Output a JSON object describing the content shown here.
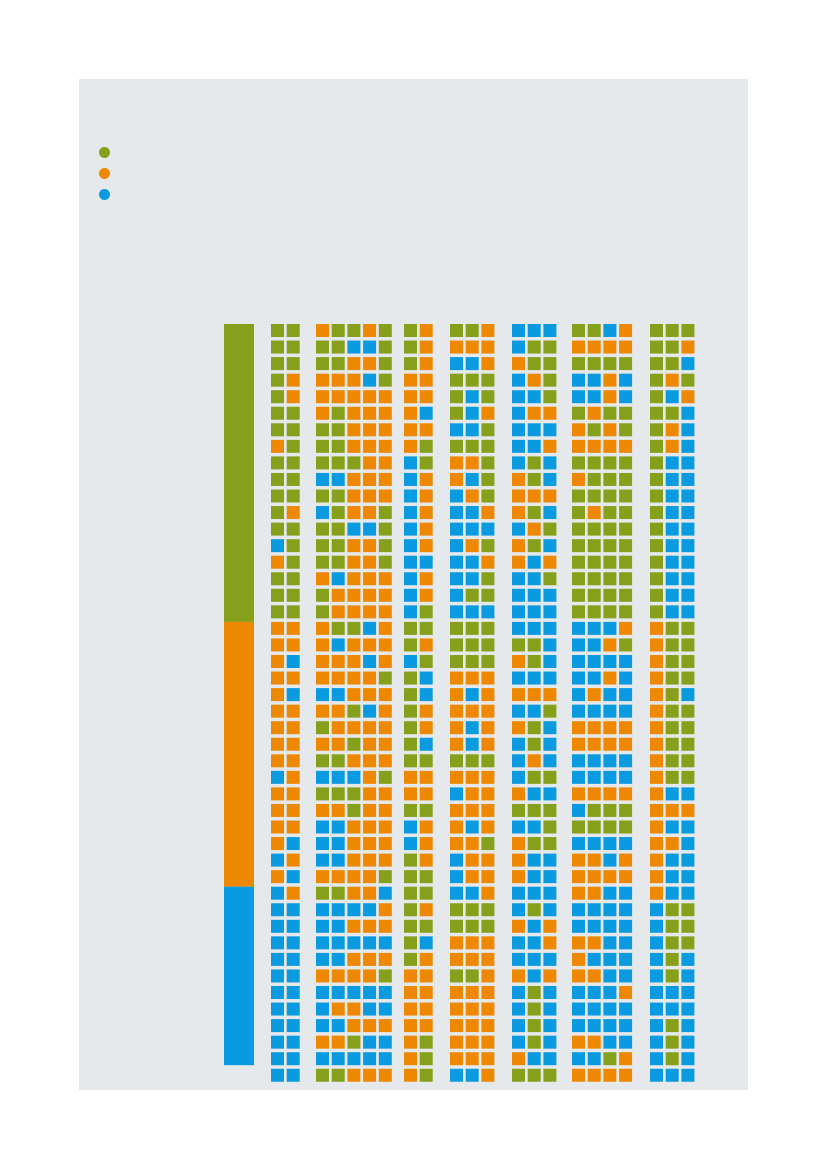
{
  "chart_data": {
    "type": "waffle",
    "title": "",
    "legend_position": "top-left",
    "categories": [
      {
        "key": "g",
        "name": "",
        "color": "#86a01b"
      },
      {
        "key": "o",
        "name": "",
        "color": "#ee8800"
      },
      {
        "key": "b",
        "name": "",
        "color": "#0a9ae0"
      }
    ],
    "reference_bar": {
      "segments": [
        {
          "key": "g",
          "rows": 18
        },
        {
          "key": "o",
          "rows": 16
        },
        {
          "key": "b",
          "rows": 11
        }
      ]
    },
    "columns": [
      {
        "cells": [
          "gg",
          "gg",
          "gg",
          "go",
          "go",
          "gg",
          "gg",
          "og",
          "gg",
          "gg",
          "gg",
          "go",
          "gg",
          "bg",
          "og",
          "gg",
          "gg",
          "gg",
          "oo",
          "oo",
          "ob",
          "oo",
          "ob",
          "oo",
          "oo",
          "oo",
          "oo",
          "bo",
          "oo",
          "oo",
          "oo",
          "ob",
          "bo",
          "ob",
          "bo",
          "bb",
          "bb",
          "bb",
          "bb",
          "bb",
          "bb",
          "bb",
          "bb",
          "bb",
          "bb",
          "bb"
        ]
      },
      {
        "cells": [
          "oggog",
          "ggbbg",
          "ggoog",
          "ooobg",
          "ooooo",
          "ogooo",
          "ggooo",
          "ggooo",
          "gggoo",
          "bbooo",
          "ggooo",
          "bgoog",
          "ggbbg",
          "ggoog",
          "ggoog",
          "obooo",
          "goooo",
          "goooo",
          "oggbo",
          "obooo",
          "ooobo",
          "oooog",
          "bbooo",
          "oogbo",
          "goooo",
          "oogoo",
          "ggooo",
          "bbbog",
          "gggoo",
          "oogoo",
          "bbooo",
          "bbooo",
          "bbooo",
          "oooog",
          "ggoob",
          "bbbbo",
          "bbooo",
          "bbbbb",
          "bbooo",
          "oooog",
          "bbbbb",
          "boobb",
          "bbooo",
          "oogbb",
          "bbbbb",
          "ggooo"
        ]
      },
      {
        "cells": [
          "go",
          "go",
          "go",
          "oo",
          "oo",
          "ob",
          "oo",
          "og",
          "bg",
          "bo",
          "bo",
          "bo",
          "bo",
          "bo",
          "bb",
          "bo",
          "bo",
          "bg",
          "gg",
          "go",
          "bg",
          "gb",
          "gb",
          "go",
          "go",
          "gb",
          "gg",
          "oo",
          "oo",
          "gg",
          "bo",
          "bo",
          "go",
          "gg",
          "gg",
          "go",
          "gg",
          "gb",
          "go",
          "oo",
          "oo",
          "oo",
          "oo",
          "og",
          "og",
          "og"
        ]
      },
      {
        "cells": [
          "ggo",
          "ooo",
          "bbo",
          "ggg",
          "gbg",
          "gbo",
          "bbg",
          "ggg",
          "oog",
          "obg",
          "bog",
          "bbo",
          "bbb",
          "bog",
          "bbo",
          "bbg",
          "bgg",
          "bbb",
          "ggg",
          "ggg",
          "ggg",
          "ooo",
          "obo",
          "ooo",
          "obo",
          "obo",
          "ggg",
          "ooo",
          "boo",
          "ooo",
          "obo",
          "oog",
          "boo",
          "boo",
          "bbo",
          "ggg",
          "ggg",
          "ooo",
          "ooo",
          "ggo",
          "ooo",
          "ooo",
          "ooo",
          "ooo",
          "ooo",
          "bbo"
        ]
      },
      {
        "cells": [
          "bbb",
          "bgg",
          "ogg",
          "bog",
          "bbg",
          "boo",
          "bbb",
          "bbo",
          "bgb",
          "ogb",
          "ooo",
          "ogb",
          "bog",
          "ogb",
          "obo",
          "bbg",
          "bbb",
          "bbb",
          "bbb",
          "ggb",
          "ogb",
          "bbb",
          "ooo",
          "bbg",
          "ogb",
          "bgb",
          "bob",
          "bgg",
          "obb",
          "ggg",
          "bbg",
          "ogg",
          "obb",
          "obb",
          "bbb",
          "bgb",
          "obo",
          "bbo",
          "bbb",
          "obo",
          "bgb",
          "bgb",
          "bgb",
          "bgb",
          "obb",
          "ggg"
        ]
      },
      {
        "cells": [
          "ggbo",
          "oooo",
          "gggg",
          "bbob",
          "bbob",
          "gogg",
          "ogog",
          "oooo",
          "gggg",
          "oggg",
          "gggg",
          "gogg",
          "gggg",
          "gggg",
          "gggg",
          "gggg",
          "gggg",
          "gggg",
          "bbbo",
          "bbog",
          "bbbb",
          "bbob",
          "bobb",
          "bbbb",
          "oooo",
          "oooo",
          "bbbb",
          "bbbb",
          "oooo",
          "bggg",
          "gggg",
          "bbbb",
          "oobo",
          "oooo",
          "oobb",
          "bbbb",
          "bbbb",
          "oobb",
          "obbb",
          "oobb",
          "bbbo",
          "bbbb",
          "bbbb",
          "oobb",
          "bbgo",
          "oooo"
        ]
      },
      {
        "cells": [
          "ggg",
          "ggo",
          "ggb",
          "gog",
          "gbo",
          "ggb",
          "gob",
          "gob",
          "gbb",
          "gbb",
          "gbb",
          "gbb",
          "gbb",
          "gbb",
          "gbb",
          "gbb",
          "gbb",
          "gbb",
          "ogg",
          "ogg",
          "ogg",
          "ogg",
          "ogb",
          "ogg",
          "ogg",
          "ogg",
          "ogg",
          "ogg",
          "obb",
          "ooo",
          "obb",
          "oob",
          "obb",
          "obb",
          "obb",
          "bgg",
          "bgg",
          "bgg",
          "bgb",
          "bgb",
          "bbb",
          "bbb",
          "bgb",
          "bgb",
          "bgb",
          "bbb"
        ]
      }
    ]
  }
}
